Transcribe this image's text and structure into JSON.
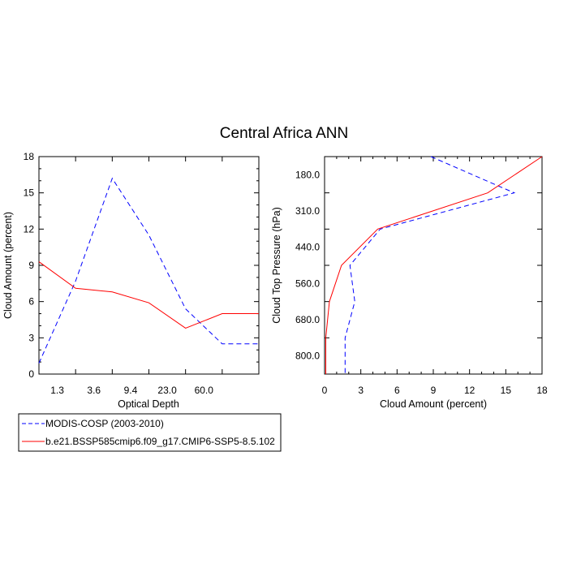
{
  "title": "Central Africa ANN",
  "chart_data": [
    {
      "type": "line",
      "xlabel": "Optical Depth",
      "ylabel": "Cloud Amount (percent)",
      "x_tick_labels": [
        "1.3",
        "3.6",
        "9.4",
        "23.0",
        "60.0"
      ],
      "y_ticks": [
        0,
        3,
        6,
        9,
        12,
        15,
        18
      ],
      "y_tick_labels": [
        "0",
        "3",
        "6",
        "9",
        "12",
        "15",
        "18"
      ],
      "ylim": [
        0,
        18
      ],
      "x_index_range": [
        0,
        6
      ],
      "series": [
        {
          "name": "MODIS-COSP (2003-2010)",
          "color": "#0000ff",
          "dash": "dashed",
          "x_index": [
            0,
            1,
            2,
            3,
            4,
            5,
            6
          ],
          "values": [
            0.9,
            7.7,
            16.2,
            11.5,
            5.4,
            2.5,
            2.5
          ]
        },
        {
          "name": "b.e21.BSSP585cmip6.f09_g17.CMIP6-SSP5-8.5.102",
          "color": "#ff0000",
          "dash": "solid",
          "x_index": [
            0,
            1,
            2,
            3,
            4,
            5,
            6
          ],
          "values": [
            9.3,
            7.1,
            6.8,
            5.9,
            3.8,
            5.0,
            5.0
          ]
        }
      ]
    },
    {
      "type": "line",
      "xlabel": "Cloud Amount (percent)",
      "ylabel": "Cloud Top Pressure (hPa)",
      "x_ticks": [
        0,
        3,
        6,
        9,
        12,
        15,
        18
      ],
      "x_tick_labels": [
        "0",
        "3",
        "6",
        "9",
        "12",
        "15",
        "18"
      ],
      "xlim": [
        0,
        18
      ],
      "y_tick_labels": [
        "180.0",
        "310.0",
        "440.0",
        "560.0",
        "680.0",
        "800.0"
      ],
      "y_index_range": [
        0,
        6
      ],
      "series": [
        {
          "name": "MODIS-COSP (2003-2010)",
          "color": "#0000ff",
          "dash": "dashed",
          "y_index": [
            0,
            1,
            2,
            3,
            4,
            5,
            6
          ],
          "values": [
            8.8,
            15.7,
            4.6,
            2.1,
            2.5,
            1.7,
            1.7
          ]
        },
        {
          "name": "b.e21.BSSP585cmip6.f09_g17.CMIP6-SSP5-8.5.102",
          "color": "#ff0000",
          "dash": "solid",
          "y_index": [
            0,
            1,
            2,
            3,
            4,
            5,
            6
          ],
          "values": [
            18.0,
            13.5,
            4.4,
            1.4,
            0.4,
            0.1,
            0.1
          ]
        }
      ]
    }
  ],
  "legend": {
    "entries": [
      {
        "label": "MODIS-COSP (2003-2010)",
        "color": "#0000ff",
        "dash": "dashed"
      },
      {
        "label": "b.e21.BSSP585cmip6.f09_g17.CMIP6-SSP5-8.5.102",
        "color": "#ff0000",
        "dash": "solid"
      }
    ]
  }
}
